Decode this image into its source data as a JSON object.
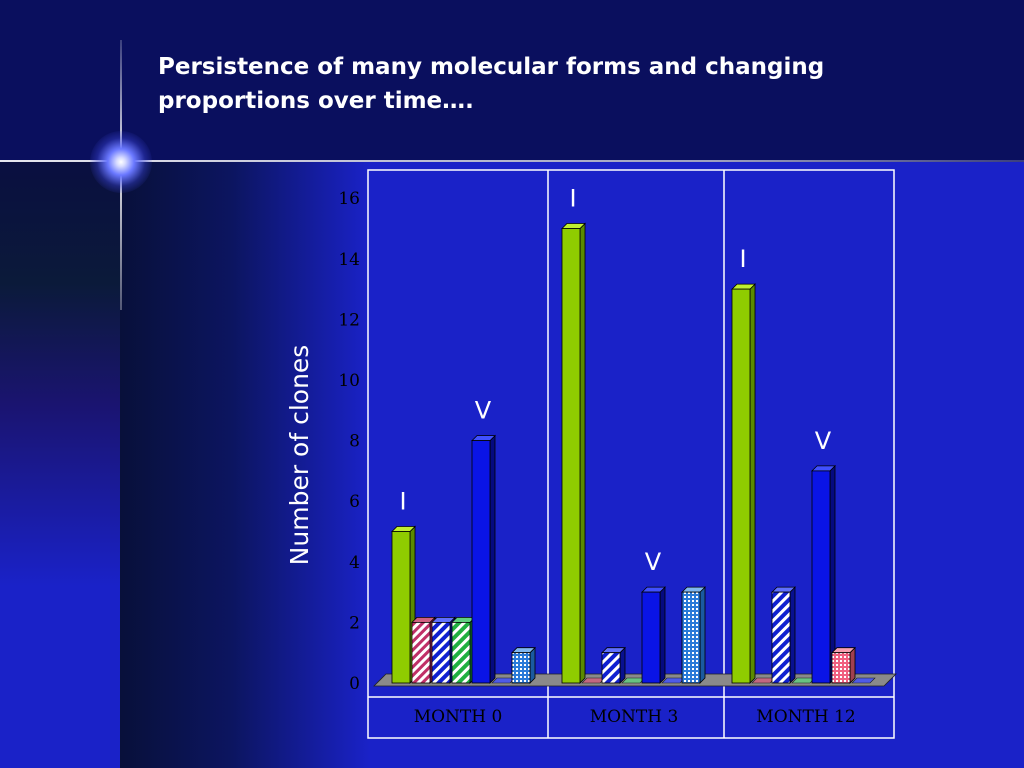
{
  "slide": {
    "title_line1": "Persistence of many molecular forms and changing",
    "title_line2": "proportions over time…."
  },
  "colors": {
    "background": "#1a22c8",
    "header": "#0a0f5e",
    "lime": "#8fcc00",
    "blue": "#0a14e6",
    "white": "#ffffff"
  },
  "chart_data": {
    "type": "bar",
    "ylabel": "Number of clones",
    "ylim": [
      0,
      16
    ],
    "yticks": [
      0,
      2,
      4,
      6,
      8,
      10,
      12,
      14,
      16
    ],
    "groups": [
      {
        "label": "MONTH 0",
        "bars": [
          {
            "value": 5,
            "fill": "lime",
            "annotation": "I"
          },
          {
            "value": 2,
            "fill": "pink-hatch"
          },
          {
            "value": 2,
            "fill": "blue-hatch"
          },
          {
            "value": 2,
            "fill": "green-hatch"
          },
          {
            "value": 8,
            "fill": "blue",
            "annotation": "V"
          },
          {
            "value": 0,
            "fill": "blue"
          },
          {
            "value": 1,
            "fill": "grid"
          }
        ]
      },
      {
        "label": "MONTH 3",
        "bars": [
          {
            "value": 15,
            "fill": "lime",
            "annotation": "I"
          },
          {
            "value": 0,
            "fill": "pink-hatch"
          },
          {
            "value": 1,
            "fill": "blue-hatch"
          },
          {
            "value": 0,
            "fill": "green-hatch"
          },
          {
            "value": 3,
            "fill": "blue",
            "annotation": "V"
          },
          {
            "value": 0,
            "fill": "blue"
          },
          {
            "value": 3,
            "fill": "grid"
          }
        ]
      },
      {
        "label": "MONTH 12",
        "bars": [
          {
            "value": 13,
            "fill": "lime",
            "annotation": "I"
          },
          {
            "value": 0,
            "fill": "pink-hatch"
          },
          {
            "value": 3,
            "fill": "blue-hatch"
          },
          {
            "value": 0,
            "fill": "green-hatch"
          },
          {
            "value": 7,
            "fill": "blue",
            "annotation": "V"
          },
          {
            "value": 1,
            "fill": "pink-grid"
          },
          {
            "value": 0,
            "fill": "blue"
          }
        ]
      }
    ]
  }
}
